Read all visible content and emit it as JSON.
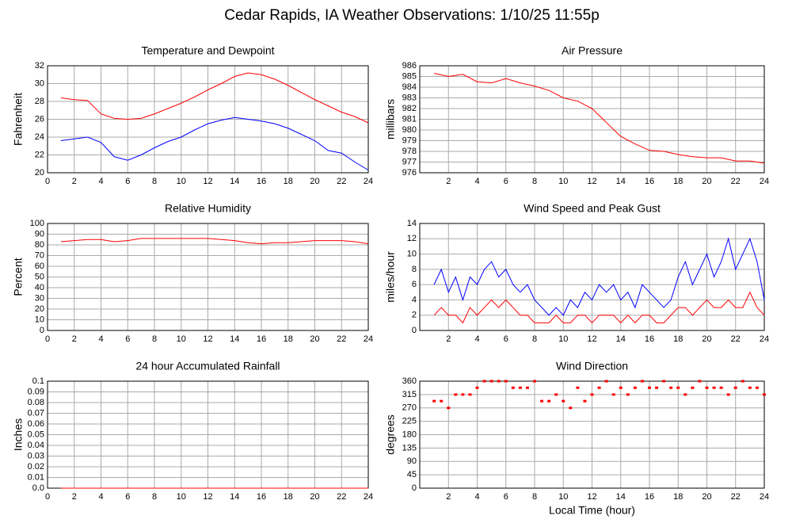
{
  "title": "Cedar Rapids, IA Weather Observations: 1/10/25 11:55p",
  "chart_data": [
    {
      "type": "line",
      "title": "Temperature and Dewpoint",
      "ylabel": "Fahrenheit",
      "grid": true,
      "xlim": [
        0,
        24
      ],
      "xticks": [
        0,
        2,
        4,
        6,
        8,
        10,
        12,
        14,
        16,
        18,
        20,
        22,
        24
      ],
      "ylim": [
        20,
        32
      ],
      "yticks": [
        20,
        22,
        24,
        26,
        28,
        30,
        32
      ],
      "x": [
        1,
        2,
        3,
        4,
        5,
        6,
        7,
        8,
        9,
        10,
        11,
        12,
        13,
        14,
        15,
        16,
        17,
        18,
        19,
        20,
        21,
        22,
        23,
        24
      ],
      "series": [
        {
          "color": "#ff0000",
          "values": [
            28.4,
            28.2,
            28.1,
            26.6,
            26.1,
            26.0,
            26.1,
            26.6,
            27.2,
            27.8,
            28.5,
            29.3,
            30.0,
            30.8,
            31.2,
            31.0,
            30.5,
            29.8,
            29.0,
            28.2,
            27.5,
            26.8,
            26.3,
            25.6
          ]
        },
        {
          "color": "#0000ff",
          "values": [
            23.6,
            23.8,
            24.0,
            23.4,
            21.8,
            21.4,
            22.0,
            22.8,
            23.5,
            24.0,
            24.8,
            25.5,
            25.9,
            26.2,
            26.0,
            25.8,
            25.5,
            25.0,
            24.3,
            23.6,
            22.5,
            22.2,
            21.2,
            20.3
          ]
        }
      ]
    },
    {
      "type": "line",
      "title": "Air Pressure",
      "ylabel": "millibars",
      "grid": true,
      "xlim": [
        0,
        24
      ],
      "xticks": [
        2,
        4,
        6,
        8,
        10,
        12,
        14,
        16,
        18,
        20,
        22,
        24
      ],
      "ylim": [
        976,
        986
      ],
      "yticks": [
        976,
        977,
        978,
        979,
        980,
        981,
        982,
        983,
        984,
        985,
        986
      ],
      "x": [
        1,
        2,
        3,
        4,
        5,
        6,
        7,
        8,
        9,
        10,
        11,
        12,
        13,
        14,
        15,
        16,
        17,
        18,
        19,
        20,
        21,
        22,
        23,
        24
      ],
      "series": [
        {
          "color": "#ff0000",
          "values": [
            985.3,
            985.0,
            985.2,
            984.5,
            984.4,
            984.8,
            984.4,
            984.1,
            983.7,
            983.0,
            982.7,
            982.0,
            980.7,
            979.4,
            978.7,
            978.1,
            978.0,
            977.7,
            977.5,
            977.4,
            977.4,
            977.1,
            977.1,
            976.9
          ]
        }
      ]
    },
    {
      "type": "line",
      "title": "Relative Humidity",
      "ylabel": "Percent",
      "grid": true,
      "xlim": [
        0,
        24
      ],
      "xticks": [
        0,
        2,
        4,
        6,
        8,
        10,
        12,
        14,
        16,
        18,
        20,
        22,
        24
      ],
      "ylim": [
        0,
        100
      ],
      "yticks": [
        0,
        10,
        20,
        30,
        40,
        50,
        60,
        70,
        80,
        90,
        100
      ],
      "x": [
        1,
        2,
        3,
        4,
        5,
        6,
        7,
        8,
        9,
        10,
        11,
        12,
        13,
        14,
        15,
        16,
        17,
        18,
        19,
        20,
        21,
        22,
        23,
        24
      ],
      "series": [
        {
          "color": "#ff0000",
          "values": [
            83,
            84,
            85,
            85,
            83,
            84,
            86,
            86,
            86,
            86,
            86,
            86,
            85,
            84,
            82,
            81,
            82,
            82,
            83,
            84,
            84,
            84,
            83,
            81
          ]
        }
      ]
    },
    {
      "type": "line",
      "title": "Wind Speed and Peak Gust",
      "ylabel": "miles/hour",
      "grid": true,
      "xlim": [
        0,
        24
      ],
      "xticks": [
        2,
        4,
        6,
        8,
        10,
        12,
        14,
        16,
        18,
        20,
        22,
        24
      ],
      "ylim": [
        0,
        14
      ],
      "yticks": [
        0,
        2,
        4,
        6,
        8,
        10,
        12,
        14
      ],
      "x": [
        1,
        1.5,
        2,
        2.5,
        3,
        3.5,
        4,
        4.5,
        5,
        5.5,
        6,
        6.5,
        7,
        7.5,
        8,
        8.5,
        9,
        9.5,
        10,
        10.5,
        11,
        11.5,
        12,
        12.5,
        13,
        13.5,
        14,
        14.5,
        15,
        15.5,
        16,
        16.5,
        17,
        17.5,
        18,
        18.5,
        19,
        19.5,
        20,
        20.5,
        21,
        21.5,
        22,
        22.5,
        23,
        23.5,
        24
      ],
      "series": [
        {
          "color": "#0000ff",
          "values": [
            6,
            8,
            5,
            7,
            4,
            7,
            6,
            8,
            9,
            7,
            8,
            6,
            5,
            6,
            4,
            3,
            2,
            3,
            2,
            4,
            3,
            5,
            4,
            6,
            5,
            6,
            4,
            5,
            3,
            6,
            5,
            4,
            3,
            4,
            7,
            9,
            6,
            8,
            10,
            7,
            9,
            12,
            8,
            10,
            12,
            9,
            4
          ]
        },
        {
          "color": "#ff0000",
          "values": [
            2,
            3,
            2,
            2,
            1,
            3,
            2,
            3,
            4,
            3,
            4,
            3,
            2,
            2,
            1,
            1,
            1,
            2,
            1,
            1,
            2,
            2,
            1,
            2,
            2,
            2,
            1,
            2,
            1,
            2,
            2,
            1,
            1,
            2,
            3,
            3,
            2,
            3,
            4,
            3,
            3,
            4,
            3,
            3,
            5,
            3,
            2
          ]
        }
      ]
    },
    {
      "type": "line",
      "title": "24 hour Accumulated Rainfall",
      "ylabel": "Inches",
      "grid": true,
      "xlim": [
        0,
        24
      ],
      "xticks": [
        0,
        2,
        4,
        6,
        8,
        10,
        12,
        14,
        16,
        18,
        20,
        22,
        24
      ],
      "ylim": [
        0,
        0.1
      ],
      "yticks": [
        {
          "value": 0,
          "label": "0.0"
        },
        0.01,
        0.02,
        0.03,
        0.04,
        0.05,
        0.06,
        0.07,
        0.08,
        0.09,
        0.1
      ],
      "x": [
        1,
        2,
        3,
        4,
        5,
        6,
        7,
        8,
        9,
        10,
        11,
        12,
        13,
        14,
        15,
        16,
        17,
        18,
        19,
        20,
        21,
        22,
        23,
        24
      ],
      "series": [
        {
          "color": "#ff0000",
          "values": [
            0,
            0,
            0,
            0,
            0,
            0,
            0,
            0,
            0,
            0,
            0,
            0,
            0,
            0,
            0,
            0,
            0,
            0,
            0,
            0,
            0,
            0,
            0,
            0
          ]
        }
      ]
    },
    {
      "type": "scatter",
      "title": "Wind Direction",
      "ylabel": "degrees",
      "xlabel": "Local Time (hour)",
      "grid": true,
      "xlim": [
        0,
        24
      ],
      "xticks": [
        2,
        4,
        6,
        8,
        10,
        12,
        14,
        16,
        18,
        20,
        22,
        24
      ],
      "ylim": [
        0,
        360
      ],
      "yticks": [
        0,
        45,
        90,
        135,
        180,
        225,
        270,
        315,
        360
      ],
      "x": [
        1,
        1.5,
        2,
        2.5,
        3,
        3.5,
        4,
        4.5,
        5,
        5.5,
        6,
        6.5,
        7,
        7.5,
        8,
        8.5,
        9,
        9.5,
        10,
        10.5,
        11,
        11.5,
        12,
        12.5,
        13,
        13.5,
        14,
        14.5,
        15,
        15.5,
        16,
        16.5,
        17,
        17.5,
        18,
        18.5,
        19,
        19.5,
        20,
        20.5,
        21,
        21.5,
        22,
        22.5,
        23,
        23.5,
        24
      ],
      "series": [
        {
          "color": "#ff0000",
          "values": [
            293,
            293,
            270,
            315,
            315,
            315,
            338,
            360,
            360,
            360,
            360,
            338,
            338,
            338,
            360,
            293,
            293,
            315,
            293,
            270,
            338,
            293,
            315,
            338,
            360,
            315,
            338,
            315,
            338,
            360,
            338,
            338,
            360,
            338,
            338,
            315,
            338,
            360,
            338,
            338,
            338,
            315,
            338,
            360,
            338,
            338,
            315
          ]
        }
      ]
    }
  ]
}
